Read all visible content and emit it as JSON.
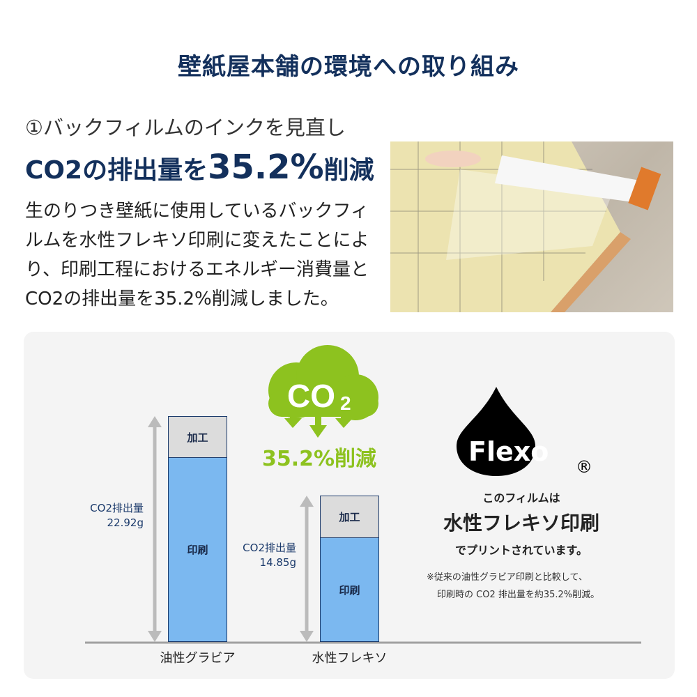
{
  "title": "壁紙屋本舗の環境への取り組み",
  "heading": {
    "line1": "①バックフィルムのインクを見直し",
    "line2_pre": "CO2の排出量を",
    "line2_big": "35.2%",
    "line2_post": "削減"
  },
  "description": "生のりつき壁紙に使用しているバックフィルムを水性フレキソ印刷に変えたことにより、印刷工程におけるエネルギー消費量とCO2の排出量を35.2%削減しました。",
  "cloud": {
    "text": "CO",
    "sub": "2",
    "reduction": "35.2%削減",
    "color": "#8dc21f"
  },
  "flexo": {
    "logo": "Flexo",
    "registered": "®",
    "line1": "このフィルムは",
    "line2": "水性フレキソ印刷",
    "line3": "でプリントされています。",
    "note1": "※従来の油性グラビア印刷と比較して、",
    "note2": "印刷時の CO2 排出量を約35.2%削減。"
  },
  "chart_data": {
    "type": "bar",
    "stacked": true,
    "categories": [
      "油性グラビア",
      "水性フレキソ"
    ],
    "series": [
      {
        "name": "印刷",
        "values": [
          18.7,
          10.6
        ],
        "color": "#7bb8f0"
      },
      {
        "name": "加工",
        "values": [
          4.2,
          4.25
        ],
        "color": "#dcdcdc"
      }
    ],
    "totals": [
      22.92,
      14.85
    ],
    "total_labels": [
      {
        "label": "CO2排出量",
        "value": "22.92g"
      },
      {
        "label": "CO2排出量",
        "value": "14.85g"
      }
    ],
    "unit": "g"
  }
}
